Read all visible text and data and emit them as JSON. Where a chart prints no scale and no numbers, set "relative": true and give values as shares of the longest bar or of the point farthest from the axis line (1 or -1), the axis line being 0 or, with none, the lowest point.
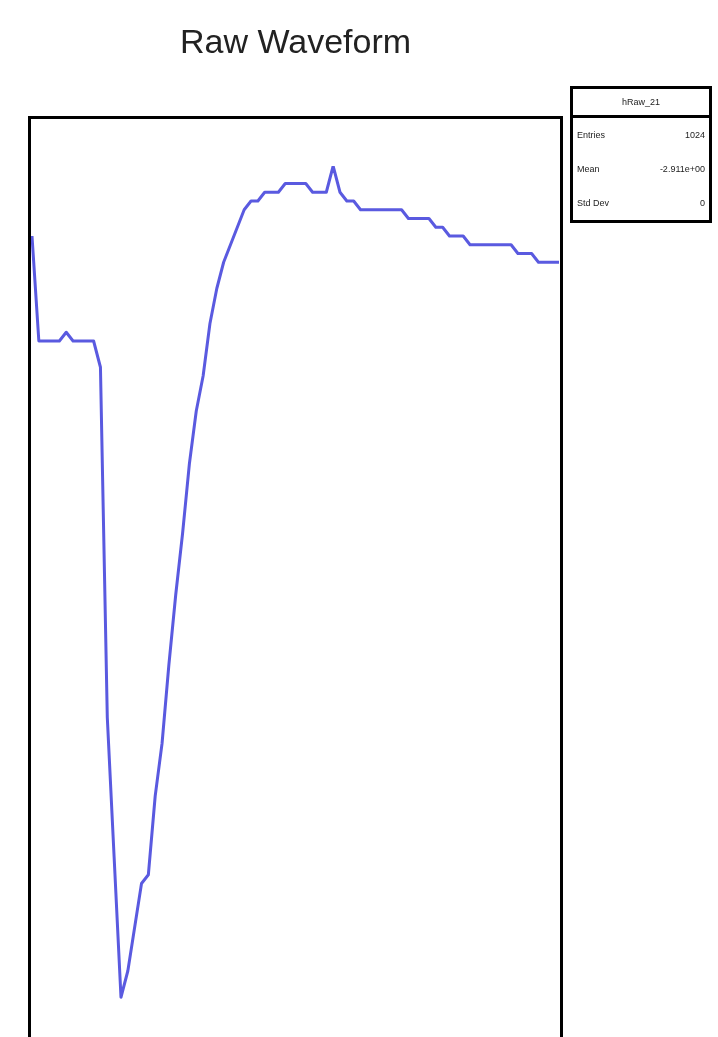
{
  "chart_data": {
    "type": "line",
    "title": "Raw Waveform",
    "relative": true,
    "tick_labels": false,
    "grid": false,
    "legend": false,
    "marker": "none",
    "line_style": "solid",
    "annotations": [
      "hRaw_21",
      "Entries",
      "1024",
      "Mean",
      "-2.911e+00",
      "Std Dev",
      "0"
    ],
    "categories": [
      null,
      null,
      null,
      null,
      null,
      null,
      null,
      null,
      null,
      null,
      null,
      null,
      null,
      null,
      null,
      null,
      null,
      null,
      null,
      null,
      null,
      null,
      null,
      null,
      null,
      null,
      null,
      null,
      null,
      null,
      null,
      null,
      null,
      null,
      null,
      null,
      null,
      null,
      null,
      null,
      null,
      null,
      null,
      null,
      null,
      null,
      null,
      null,
      null,
      null,
      null,
      null,
      null,
      null,
      null,
      null,
      null,
      null,
      null,
      null,
      null,
      null,
      null,
      null,
      null,
      null,
      null,
      null,
      null,
      null,
      null,
      null,
      null,
      null,
      null,
      null,
      null,
      null
    ],
    "series": [
      {
        "color": "#5a5ae0",
        "values": [
          0.92,
          0.8,
          0.8,
          0.8,
          0.8,
          0.81,
          0.8,
          0.8,
          0.8,
          0.8,
          0.77,
          0.37,
          0.21,
          0.05,
          0.08,
          0.13,
          0.18,
          0.19,
          0.28,
          0.34,
          0.43,
          0.51,
          0.58,
          0.66,
          0.72,
          0.76,
          0.82,
          0.86,
          0.89,
          0.91,
          0.93,
          0.95,
          0.96,
          0.96,
          0.97,
          0.97,
          0.97,
          0.98,
          0.98,
          0.98,
          0.98,
          0.97,
          0.97,
          0.97,
          1,
          0.97,
          0.96,
          0.96,
          0.95,
          0.95,
          0.95,
          0.95,
          0.95,
          0.95,
          0.95,
          0.94,
          0.94,
          0.94,
          0.94,
          0.93,
          0.93,
          0.92,
          0.92,
          0.92,
          0.91,
          0.91,
          0.91,
          0.91,
          0.91,
          0.91,
          0.91,
          0.9,
          0.9,
          0.9,
          0.89,
          0.89,
          0.89,
          0.89
        ]
      }
    ]
  }
}
